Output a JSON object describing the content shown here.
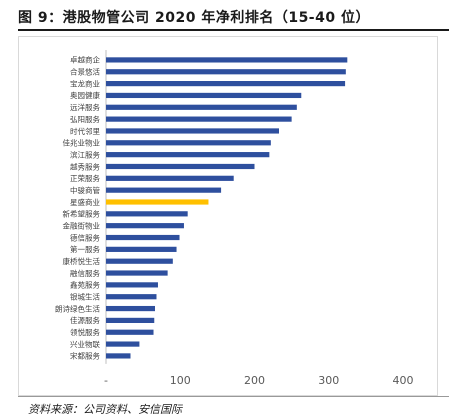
{
  "figure": {
    "title": "图 9：港股物管公司 2020 年净利排名（15-40 位）",
    "source": "资料来源：公司资料、安信国际"
  },
  "colors": {
    "bar": "#2e4f9e",
    "highlight": "#ffc000",
    "axis": "#bfbfbf"
  },
  "chart_data": {
    "type": "bar",
    "orientation": "horizontal",
    "categories": [
      "卓越商企",
      "合景悠活",
      "宝龙商业",
      "奥园健康",
      "远洋服务",
      "弘阳服务",
      "时代邻里",
      "佳兆业物业",
      "滨江服务",
      "越秀服务",
      "正荣服务",
      "中骏商管",
      "星盛商业",
      "新希望服务",
      "金融街物业",
      "德信服务",
      "第一服务",
      "康桥悦生活",
      "融信服务",
      "鑫苑服务",
      "银城生活",
      "朗诗绿色生活",
      "佳源服务",
      "领悦服务",
      "兴业物联",
      "宋都服务"
    ],
    "values": [
      325,
      323,
      322,
      263,
      257,
      250,
      233,
      222,
      220,
      200,
      172,
      155,
      138,
      110,
      105,
      99,
      95,
      90,
      83,
      70,
      68,
      66,
      65,
      64,
      45,
      33
    ],
    "highlight_index": 12,
    "xlim": [
      0,
      400
    ],
    "xticks": [
      "-",
      "100",
      "200",
      "300",
      "400"
    ],
    "xtick_values": [
      0,
      100,
      200,
      300,
      400
    ],
    "grid": false,
    "legend": "none"
  }
}
